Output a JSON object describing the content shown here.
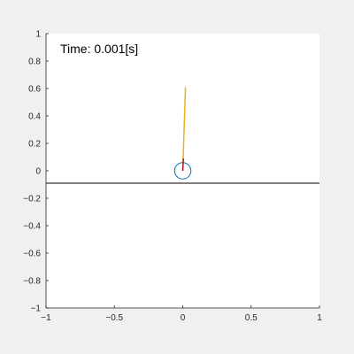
{
  "chart_data": {
    "type": "line",
    "annotation": "Time: 0.001[s]",
    "xlim": [
      -1,
      1
    ],
    "ylim": [
      -1,
      1
    ],
    "x_ticks": [
      -1,
      -0.5,
      0,
      0.5,
      1
    ],
    "x_tick_labels": [
      "−1",
      "−0.5",
      "0",
      "0.5",
      "1"
    ],
    "y_ticks": [
      -1,
      -0.8,
      -0.6,
      -0.4,
      -0.2,
      0,
      0.2,
      0.4,
      0.6,
      0.8,
      1
    ],
    "y_tick_labels": [
      "−1",
      "−0.8",
      "−0.6",
      "−0.4",
      "−0.2",
      "0",
      "0.2",
      "0.4",
      "0.6",
      "0.8",
      "1"
    ],
    "grid": false,
    "ground_line": {
      "y": -0.09,
      "color": "#000000"
    },
    "wheel": {
      "center": [
        0,
        0
      ],
      "radius": 0.06,
      "color": "#0072bd"
    },
    "rod": {
      "x": [
        0.0,
        0.02
      ],
      "y": [
        0.0,
        0.61
      ],
      "color": "#edb120"
    },
    "rod_base": {
      "x": [
        0.0,
        0.005
      ],
      "y": [
        0.0,
        0.09
      ],
      "color": "#a2142f"
    },
    "colors": {
      "figure_bg": "#f0f0f0",
      "axes_bg": "#ffffff",
      "axis": "#262626"
    }
  }
}
